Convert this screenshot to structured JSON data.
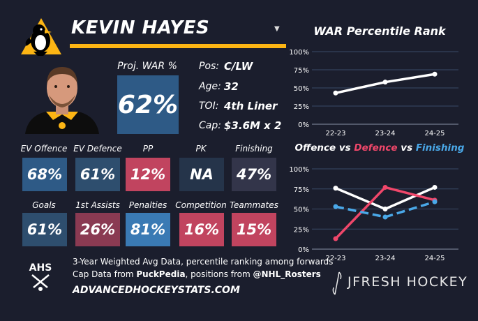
{
  "player": {
    "name": "KEVIN HAYES",
    "proj_war_label": "Proj. WAR %",
    "proj_war_value": "62%",
    "info": [
      {
        "label": "Pos:",
        "value": "C/LW"
      },
      {
        "label": "Age:",
        "value": "32"
      },
      {
        "label": "TOI:",
        "value": "4th Liner"
      },
      {
        "label": "Cap:",
        "value": "$3.6M x 2"
      }
    ]
  },
  "ui": {
    "dropdown_icon": "chevron-down-icon"
  },
  "stats_row1": [
    {
      "label": "EV Offence",
      "value": "68%",
      "color": "#2e5a86"
    },
    {
      "label": "EV Defence",
      "value": "61%",
      "color": "#2e4e6e"
    },
    {
      "label": "PP",
      "value": "12%",
      "color": "#c1445f"
    },
    {
      "label": "PK",
      "value": "NA",
      "color": "#25344a"
    },
    {
      "label": "Finishing",
      "value": "47%",
      "color": "#33354a"
    }
  ],
  "stats_row2": [
    {
      "label": "Goals",
      "value": "61%",
      "color": "#2e4e6e"
    },
    {
      "label": "1st Assists",
      "value": "26%",
      "color": "#8a3a52"
    },
    {
      "label": "Penalties",
      "value": "81%",
      "color": "#3a7ab4"
    },
    {
      "label": "Competition",
      "value": "16%",
      "color": "#c1445f"
    },
    {
      "label": "Teammates",
      "value": "15%",
      "color": "#c1445f"
    }
  ],
  "footer": {
    "line1": "3-Year Weighted Avg Data, percentile ranking among forwards",
    "line2_prefix": "Cap Data from ",
    "line2_bold1": "PuckPedia",
    "line2_mid": ", positions from ",
    "line2_bold2": "@NHL_Rosters",
    "site": "ADVANCEDHOCKEYSTATS.COM",
    "ahs_logo_text": "AHS",
    "brand": "JFRESH HOCKEY"
  },
  "chart_data": [
    {
      "type": "line",
      "title": "WAR Percentile Rank",
      "categories": [
        "22-23",
        "23-24",
        "24-25"
      ],
      "ylim": [
        0,
        100
      ],
      "yticks": [
        "0%",
        "25%",
        "50%",
        "75%",
        "100%"
      ],
      "grid": true,
      "series": [
        {
          "values": [
            43,
            58,
            69
          ],
          "color": "#ffffff",
          "dash": false
        }
      ]
    },
    {
      "type": "line",
      "title": "Offence vs Defence vs Finishing",
      "title_parts": [
        {
          "text": "Offence",
          "color": "#ffffff"
        },
        {
          "text": " vs ",
          "color": "#ffffff"
        },
        {
          "text": "Defence",
          "color": "#f0476a"
        },
        {
          "text": " vs ",
          "color": "#ffffff"
        },
        {
          "text": "Finishing",
          "color": "#4aa8e8"
        }
      ],
      "categories": [
        "22-23",
        "23-24",
        "24-25"
      ],
      "ylim": [
        0,
        100
      ],
      "yticks": [
        "0%",
        "25%",
        "50%",
        "75%",
        "100%"
      ],
      "grid": true,
      "series": [
        {
          "name": "Offence",
          "values": [
            76,
            50,
            77
          ],
          "color": "#ffffff",
          "dash": false
        },
        {
          "name": "Defence",
          "values": [
            13,
            77,
            61
          ],
          "color": "#f0476a",
          "dash": false
        },
        {
          "name": "Finishing",
          "values": [
            53,
            40,
            59
          ],
          "color": "#4aa8e8",
          "dash": true
        }
      ]
    }
  ]
}
